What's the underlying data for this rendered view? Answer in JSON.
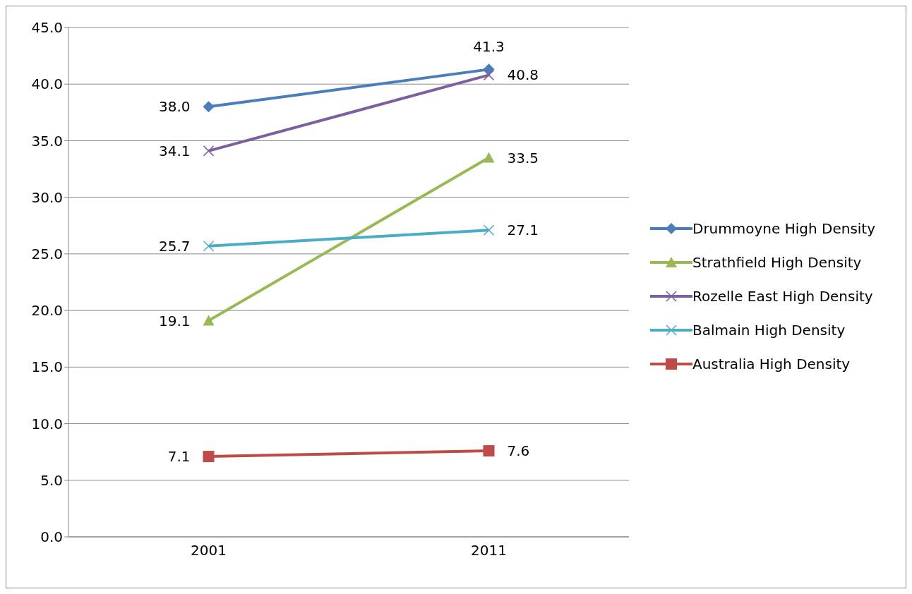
{
  "chart_data": {
    "type": "line",
    "categories": [
      "2001",
      "2011"
    ],
    "series": [
      {
        "name": "Drummoyne High Density",
        "color": "#4a7ebb",
        "values": [
          38.0,
          41.3
        ],
        "marker": "diamond",
        "value_labels": [
          "38.0",
          "41.3"
        ]
      },
      {
        "name": "Strathfield High Density",
        "color": "#98b954",
        "values": [
          19.1,
          33.5
        ],
        "marker": "triangle",
        "value_labels": [
          "19.1",
          "33.5"
        ]
      },
      {
        "name": "Rozelle East High Density",
        "color": "#7d5fa0",
        "values": [
          34.1,
          40.8
        ],
        "marker": "cross",
        "value_labels": [
          "34.1",
          "40.8"
        ]
      },
      {
        "name": "Balmain High Density",
        "color": "#4bacc6",
        "values": [
          25.7,
          27.1
        ],
        "marker": "cross",
        "value_labels": [
          "25.7",
          "27.1"
        ]
      },
      {
        "name": "Australia High Density",
        "color": "#be4b48",
        "values": [
          7.1,
          7.6
        ],
        "marker": "square",
        "value_labels": [
          "7.1",
          "7.6"
        ]
      }
    ],
    "ylim": [
      0,
      45
    ],
    "yticks": [
      {
        "value": 0,
        "label": "0.0"
      },
      {
        "value": 5,
        "label": "5.0"
      },
      {
        "value": 10,
        "label": "10.0"
      },
      {
        "value": 15,
        "label": "15.0"
      },
      {
        "value": 20,
        "label": "20.0"
      },
      {
        "value": 25,
        "label": "25.0"
      },
      {
        "value": 30,
        "label": "30.0"
      },
      {
        "value": 35,
        "label": "35.0"
      },
      {
        "value": 40,
        "label": "40.0"
      },
      {
        "value": 45,
        "label": "45.0"
      }
    ],
    "grid": "y",
    "legend": "right",
    "line_style": "solid"
  }
}
